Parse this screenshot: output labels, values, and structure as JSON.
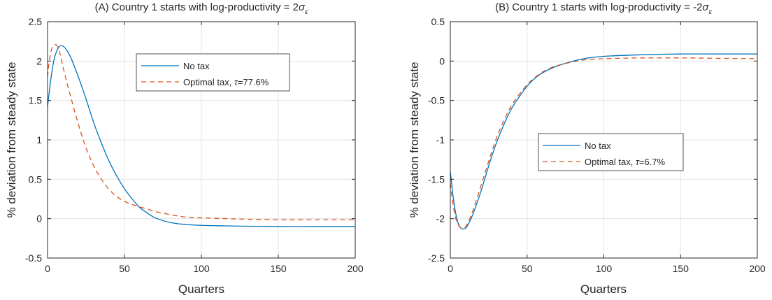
{
  "colors": {
    "no_tax": "#0072BD",
    "optimal_tax": "#D95319",
    "grid": "#e3e3e3",
    "axis": "#262626"
  },
  "chart_data": [
    {
      "type": "line",
      "title_prefix": "(A) Country 1 starts with log-productivity = 2",
      "title_symbol": "σ",
      "title_subscript": "ε",
      "xlabel": "Quarters",
      "ylabel": "% deviation from steady state",
      "xlim": [
        0,
        200
      ],
      "ylim": [
        -0.5,
        2.5
      ],
      "xticks": [
        0,
        50,
        100,
        150,
        200
      ],
      "yticks": [
        -0.5,
        0,
        0.5,
        1,
        1.5,
        2,
        2.5
      ],
      "xtick_labels": [
        "0",
        "50",
        "100",
        "150",
        "200"
      ],
      "ytick_labels": [
        "-0.5",
        "0",
        "0.5",
        "1",
        "1.5",
        "2",
        "2.5"
      ],
      "grid": true,
      "legend_position": "top-right",
      "legend_tau": "τ",
      "series": [
        {
          "name": "No tax",
          "tau_value": "",
          "style": "solid",
          "x": [
            0,
            2,
            4,
            6,
            8,
            10,
            12,
            15,
            20,
            25,
            30,
            35,
            40,
            45,
            50,
            55,
            60,
            65,
            70,
            80,
            90,
            100,
            110,
            125,
            150,
            175,
            200
          ],
          "y": [
            1.42,
            1.75,
            2.0,
            2.13,
            2.19,
            2.19,
            2.15,
            2.05,
            1.8,
            1.52,
            1.22,
            0.96,
            0.73,
            0.54,
            0.38,
            0.25,
            0.14,
            0.07,
            0.01,
            -0.05,
            -0.075,
            -0.085,
            -0.09,
            -0.095,
            -0.1,
            -0.1,
            -0.1
          ]
        },
        {
          "name": "Optimal tax, ",
          "tau_value": "=77.6%",
          "style": "dashed",
          "x": [
            0,
            1,
            2,
            3,
            4,
            5,
            6,
            7,
            8,
            9,
            10,
            12,
            15,
            20,
            25,
            30,
            35,
            40,
            45,
            50,
            55,
            60,
            65,
            70,
            80,
            90,
            100,
            125,
            150,
            175,
            200
          ],
          "y": [
            1.8,
            1.98,
            2.1,
            2.17,
            2.2,
            2.21,
            2.2,
            2.16,
            2.1,
            2.02,
            1.93,
            1.77,
            1.55,
            1.2,
            0.9,
            0.67,
            0.5,
            0.37,
            0.28,
            0.22,
            0.18,
            0.15,
            0.12,
            0.09,
            0.05,
            0.02,
            0.01,
            -0.005,
            -0.015,
            -0.015,
            -0.015
          ]
        }
      ]
    },
    {
      "type": "line",
      "title_prefix": "(B) Country 1 starts with log-productivity = -2",
      "title_symbol": "σ",
      "title_subscript": "ε",
      "xlabel": "Quarters",
      "ylabel": "% deviation from steady state",
      "xlim": [
        0,
        200
      ],
      "ylim": [
        -2.5,
        0.5
      ],
      "xticks": [
        0,
        50,
        100,
        150,
        200
      ],
      "yticks": [
        -2.5,
        -2,
        -1.5,
        -1,
        -0.5,
        0,
        0.5
      ],
      "xtick_labels": [
        "0",
        "50",
        "100",
        "150",
        "200"
      ],
      "ytick_labels": [
        "-2.5",
        "-2",
        "-1.5",
        "-1",
        "-0.5",
        "0",
        "0.5"
      ],
      "grid": true,
      "legend_position": "center",
      "legend_tau": "τ",
      "series": [
        {
          "name": "No tax",
          "tau_value": "",
          "style": "solid",
          "x": [
            0,
            2,
            4,
            6,
            8,
            10,
            12,
            15,
            20,
            25,
            30,
            35,
            40,
            45,
            50,
            55,
            60,
            65,
            70,
            80,
            90,
            100,
            110,
            125,
            150,
            175,
            200
          ],
          "y": [
            -1.4,
            -1.75,
            -1.98,
            -2.1,
            -2.13,
            -2.12,
            -2.06,
            -1.93,
            -1.65,
            -1.33,
            -1.04,
            -0.8,
            -0.6,
            -0.45,
            -0.32,
            -0.22,
            -0.15,
            -0.1,
            -0.06,
            0.0,
            0.04,
            0.06,
            0.07,
            0.08,
            0.09,
            0.09,
            0.09
          ]
        },
        {
          "name": "Optimal tax, ",
          "tau_value": "=6.7%",
          "style": "dashed",
          "x": [
            0,
            2,
            4,
            6,
            8,
            10,
            12,
            15,
            20,
            25,
            30,
            35,
            40,
            45,
            50,
            55,
            60,
            65,
            70,
            80,
            90,
            100,
            110,
            125,
            150,
            175,
            200
          ],
          "y": [
            -1.55,
            -1.85,
            -2.03,
            -2.1,
            -2.12,
            -2.1,
            -2.03,
            -1.88,
            -1.58,
            -1.27,
            -0.98,
            -0.75,
            -0.56,
            -0.42,
            -0.3,
            -0.21,
            -0.14,
            -0.09,
            -0.055,
            -0.01,
            0.02,
            0.03,
            0.035,
            0.04,
            0.04,
            0.035,
            0.03
          ]
        }
      ]
    }
  ]
}
